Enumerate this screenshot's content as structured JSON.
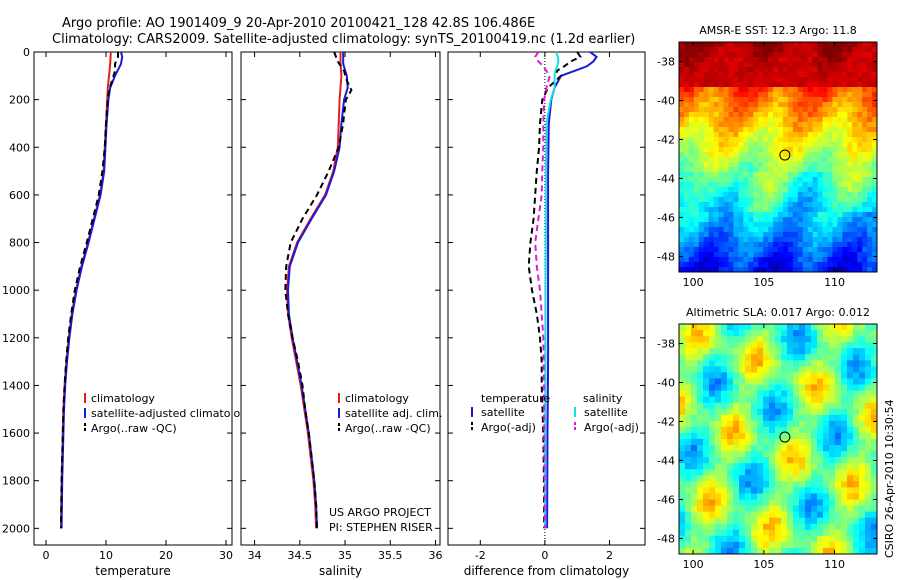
{
  "title": {
    "line1": "Argo profile: AO 1901409_9 20-Apr-2010 20100421_128 42.8S 106.486E",
    "line2": "Climatology: CARS2009. Satellite-adjusted climatology: synTS_20100419.nc (1.2d earlier)"
  },
  "side_label": "CSIRO 26-Apr-2010 10:30:54",
  "project_note": {
    "line1": "US ARGO PROJECT",
    "line2": "PI: STEPHEN RISER"
  },
  "colors": {
    "climatology": "#e02020",
    "satellite": "#1a1ad8",
    "argo": "#000000",
    "sal_sat": "#18e0e0",
    "sal_argo": "#e018e0"
  },
  "chart_data": [
    {
      "type": "line",
      "id": "temperature",
      "xlabel": "temperature",
      "ylabel": "",
      "xlim": [
        -2,
        31
      ],
      "ylim": [
        2070,
        0
      ],
      "xticks": [
        0,
        10,
        20,
        30
      ],
      "yticks": [
        0,
        200,
        400,
        600,
        800,
        1000,
        1200,
        1400,
        1600,
        1800,
        2000
      ],
      "legend": [
        "climatology",
        "satellite-adjusted climatology",
        "Argo(..raw -QC)"
      ],
      "series": [
        {
          "name": "climatology",
          "depth": [
            0,
            50,
            100,
            150,
            200,
            300,
            400,
            500,
            600,
            700,
            800,
            900,
            1000,
            1100,
            1200,
            1300,
            1400,
            1500,
            1600,
            1700,
            1800,
            1900,
            2000
          ],
          "values": [
            10.8,
            10.7,
            10.5,
            10.3,
            10.2,
            10.0,
            9.8,
            9.6,
            9.0,
            8.0,
            7.0,
            5.9,
            5.0,
            4.3,
            3.8,
            3.4,
            3.1,
            2.9,
            2.8,
            2.7,
            2.6,
            2.55,
            2.5
          ]
        },
        {
          "name": "satellite-adjusted climatology",
          "depth": [
            0,
            20,
            50,
            100,
            150,
            200,
            300,
            400,
            500,
            600,
            700,
            800,
            900,
            1000,
            1100,
            1200,
            1300,
            1400,
            1500,
            1600,
            1700,
            1800,
            1900,
            2000
          ],
          "values": [
            12.5,
            12.7,
            12.5,
            11.5,
            10.7,
            10.4,
            10.1,
            9.9,
            9.7,
            9.1,
            8.1,
            7.1,
            6.0,
            5.1,
            4.4,
            3.9,
            3.5,
            3.2,
            3.0,
            2.9,
            2.8,
            2.7,
            2.65,
            2.6
          ]
        },
        {
          "name": "Argo(..raw -QC)",
          "depth": [
            0,
            20,
            50,
            80,
            120,
            160,
            200,
            300,
            400,
            500,
            600,
            700,
            800,
            900,
            1000,
            1100,
            1200,
            1300,
            1400,
            1500,
            1600,
            1700,
            1800,
            1900,
            2000
          ],
          "values": [
            12.0,
            12.0,
            11.5,
            11.5,
            11.0,
            10.5,
            10.3,
            10.0,
            9.8,
            9.4,
            8.8,
            7.8,
            6.8,
            5.7,
            4.8,
            4.2,
            3.7,
            3.35,
            3.1,
            2.9,
            2.8,
            2.7,
            2.6,
            2.55,
            2.5
          ]
        }
      ]
    },
    {
      "type": "line",
      "id": "salinity",
      "xlabel": "salinity",
      "ylabel": "",
      "xlim": [
        33.85,
        36.05
      ],
      "ylim": [
        2070,
        0
      ],
      "xticks": [
        34,
        34.5,
        35,
        35.5,
        36
      ],
      "xticklabels": [
        "34",
        "34.5",
        "35",
        "35.5",
        "36"
      ],
      "legend": [
        "climatology",
        "satellite adj. clim.",
        "Argo(..raw -QC)"
      ],
      "series": [
        {
          "name": "climatology",
          "depth": [
            0,
            50,
            100,
            150,
            200,
            300,
            400,
            500,
            600,
            700,
            800,
            900,
            1000,
            1100,
            1200,
            1300,
            1400,
            1500,
            1600,
            1700,
            1800,
            1900,
            2000
          ],
          "values": [
            34.95,
            34.95,
            34.96,
            34.95,
            34.94,
            34.93,
            34.92,
            34.87,
            34.78,
            34.62,
            34.47,
            34.38,
            34.36,
            34.37,
            34.41,
            34.46,
            34.51,
            34.55,
            34.59,
            34.62,
            34.65,
            34.67,
            34.68
          ]
        },
        {
          "name": "satellite adj. clim.",
          "depth": [
            0,
            50,
            100,
            150,
            200,
            300,
            400,
            500,
            600,
            700,
            800,
            900,
            1000,
            1100,
            1200,
            1300,
            1400,
            1500,
            1600,
            1700,
            1800,
            1900,
            2000
          ],
          "values": [
            34.98,
            34.98,
            35.02,
            35.03,
            34.99,
            34.96,
            34.94,
            34.88,
            34.79,
            34.63,
            34.48,
            34.39,
            34.37,
            34.38,
            34.42,
            34.47,
            34.52,
            34.56,
            34.6,
            34.63,
            34.66,
            34.68,
            34.69
          ]
        },
        {
          "name": "Argo(..raw -QC)",
          "depth": [
            0,
            40,
            80,
            120,
            160,
            200,
            260,
            300,
            400,
            500,
            600,
            700,
            800,
            900,
            1000,
            1100,
            1200,
            1300,
            1400,
            1500,
            1600,
            1700,
            1800,
            1900,
            2000
          ],
          "values": [
            34.88,
            34.92,
            34.99,
            35.02,
            35.07,
            35.01,
            34.99,
            34.98,
            34.93,
            34.82,
            34.69,
            34.53,
            34.4,
            34.35,
            34.34,
            34.37,
            34.42,
            34.48,
            34.53,
            34.56,
            34.6,
            34.63,
            34.66,
            34.68,
            34.69
          ]
        }
      ]
    },
    {
      "type": "line",
      "id": "difference",
      "xlabel": "difference from climatology",
      "ylabel": "",
      "xlim": [
        -3,
        3.1
      ],
      "ylim": [
        2070,
        0
      ],
      "xticks": [
        -2,
        0,
        2
      ],
      "legend": [
        "temperature",
        "satellite",
        "Argo(-adj)",
        "salinity",
        "satellite",
        "Argo(-adj)"
      ],
      "series": [
        {
          "name": "temperature satellite",
          "depth": [
            0,
            10,
            20,
            40,
            60,
            80,
            100,
            150,
            200,
            300,
            500,
            700,
            1000,
            1300,
            1600,
            2000
          ],
          "values": [
            1.4,
            1.5,
            1.6,
            1.5,
            1.3,
            0.9,
            0.5,
            0.3,
            0.2,
            0.12,
            0.1,
            0.1,
            0.1,
            0.1,
            0.08,
            0.07
          ]
        },
        {
          "name": "temperature Argo(-adj)",
          "depth": [
            0,
            20,
            40,
            60,
            80,
            100,
            150,
            200,
            300,
            400,
            500,
            600,
            700,
            800,
            900,
            1000,
            1100,
            1200,
            1300,
            1400,
            1600,
            1800,
            2000
          ],
          "values": [
            1.0,
            1.1,
            0.8,
            0.6,
            0.35,
            0.5,
            0.1,
            -0.08,
            -0.15,
            -0.18,
            -0.25,
            -0.3,
            -0.35,
            -0.45,
            -0.5,
            -0.4,
            -0.25,
            -0.15,
            -0.1,
            -0.1,
            -0.05,
            -0.03,
            -0.02
          ]
        },
        {
          "name": "salinity satellite",
          "depth": [
            0,
            20,
            40,
            60,
            80,
            100,
            150,
            200,
            300,
            500,
            700,
            1000,
            1300,
            1600,
            2000
          ],
          "values": [
            0.35,
            0.4,
            0.42,
            0.38,
            0.32,
            0.3,
            0.3,
            0.18,
            0.05,
            0.03,
            0.03,
            0.02,
            0.02,
            0.01,
            0.01
          ]
        },
        {
          "name": "salinity Argo(-adj)",
          "depth": [
            0,
            20,
            40,
            60,
            80,
            100,
            150,
            200,
            300,
            400,
            500,
            600,
            700,
            800,
            900,
            1000,
            1100,
            1200,
            1400,
            1600,
            2000
          ],
          "values": [
            -0.2,
            -0.3,
            -0.2,
            -0.05,
            0.05,
            0.15,
            0.05,
            -0.02,
            -0.05,
            -0.05,
            -0.08,
            -0.1,
            -0.2,
            -0.3,
            -0.25,
            -0.15,
            -0.1,
            -0.05,
            -0.03,
            -0.02,
            0.0
          ]
        }
      ]
    },
    {
      "type": "heatmap",
      "id": "sst_map",
      "title": "AMSR-E SST: 12.3 Argo: 11.8",
      "xlim": [
        99,
        113
      ],
      "ylim": [
        -48.8,
        -37
      ],
      "xticks": [
        100,
        105,
        110
      ],
      "yticks": [
        -38,
        -40,
        -42,
        -44,
        -46,
        -48
      ],
      "marker": {
        "lon": 106.486,
        "lat": -42.8
      }
    },
    {
      "type": "heatmap",
      "id": "sla_map",
      "title": "Altimetric SLA: 0.017 Argo: 0.012",
      "xlim": [
        99,
        113
      ],
      "ylim": [
        -48.8,
        -37
      ],
      "xticks": [
        100,
        105,
        110
      ],
      "yticks": [
        -38,
        -40,
        -42,
        -44,
        -46,
        -48
      ],
      "marker": {
        "lon": 106.486,
        "lat": -42.8
      }
    }
  ]
}
